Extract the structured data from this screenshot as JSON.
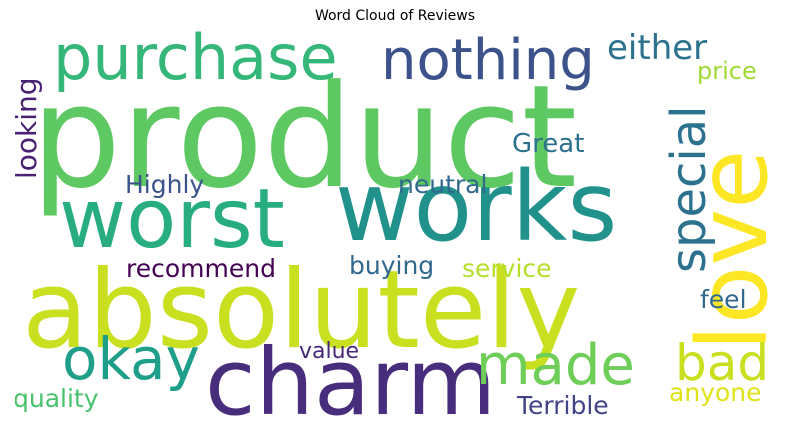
{
  "title": "Word Cloud of Reviews",
  "words": [
    {
      "text": "product",
      "color": "#5ec962",
      "orientation": "horizontal"
    },
    {
      "text": "absolutely",
      "color": "#c8e020",
      "orientation": "horizontal"
    },
    {
      "text": "charm",
      "color": "#472d7b",
      "orientation": "horizontal"
    },
    {
      "text": "works",
      "color": "#21918c",
      "orientation": "horizontal"
    },
    {
      "text": "worst",
      "color": "#27ad81",
      "orientation": "horizontal"
    },
    {
      "text": "love",
      "color": "#fde725",
      "orientation": "vertical"
    },
    {
      "text": "purchase",
      "color": "#35b779",
      "orientation": "horizontal"
    },
    {
      "text": "nothing",
      "color": "#3b528b",
      "orientation": "horizontal"
    },
    {
      "text": "special",
      "color": "#2c728e",
      "orientation": "vertical"
    },
    {
      "text": "okay",
      "color": "#1f9e89",
      "orientation": "horizontal"
    },
    {
      "text": "made",
      "color": "#6ece58",
      "orientation": "horizontal"
    },
    {
      "text": "bad",
      "color": "#c8e020",
      "orientation": "horizontal"
    },
    {
      "text": "either",
      "color": "#2c728e",
      "orientation": "horizontal"
    },
    {
      "text": "price",
      "color": "#a0da39",
      "orientation": "horizontal"
    },
    {
      "text": "looking",
      "color": "#482173",
      "orientation": "vertical"
    },
    {
      "text": "Great",
      "color": "#2c728e",
      "orientation": "horizontal"
    },
    {
      "text": "Highly",
      "color": "#3b528b",
      "orientation": "horizontal"
    },
    {
      "text": "neutral",
      "color": "#31688e",
      "orientation": "horizontal"
    },
    {
      "text": "recommend",
      "color": "#440154",
      "orientation": "horizontal"
    },
    {
      "text": "buying",
      "color": "#31688e",
      "orientation": "horizontal"
    },
    {
      "text": "service",
      "color": "#b5de2b",
      "orientation": "horizontal"
    },
    {
      "text": "feel",
      "color": "#31688e",
      "orientation": "horizontal"
    },
    {
      "text": "value",
      "color": "#482878",
      "orientation": "horizontal"
    },
    {
      "text": "quality",
      "color": "#4ac16d",
      "orientation": "horizontal"
    },
    {
      "text": "anyone",
      "color": "#dde318",
      "orientation": "horizontal"
    },
    {
      "text": "Terrible",
      "color": "#414487",
      "orientation": "horizontal"
    }
  ]
}
